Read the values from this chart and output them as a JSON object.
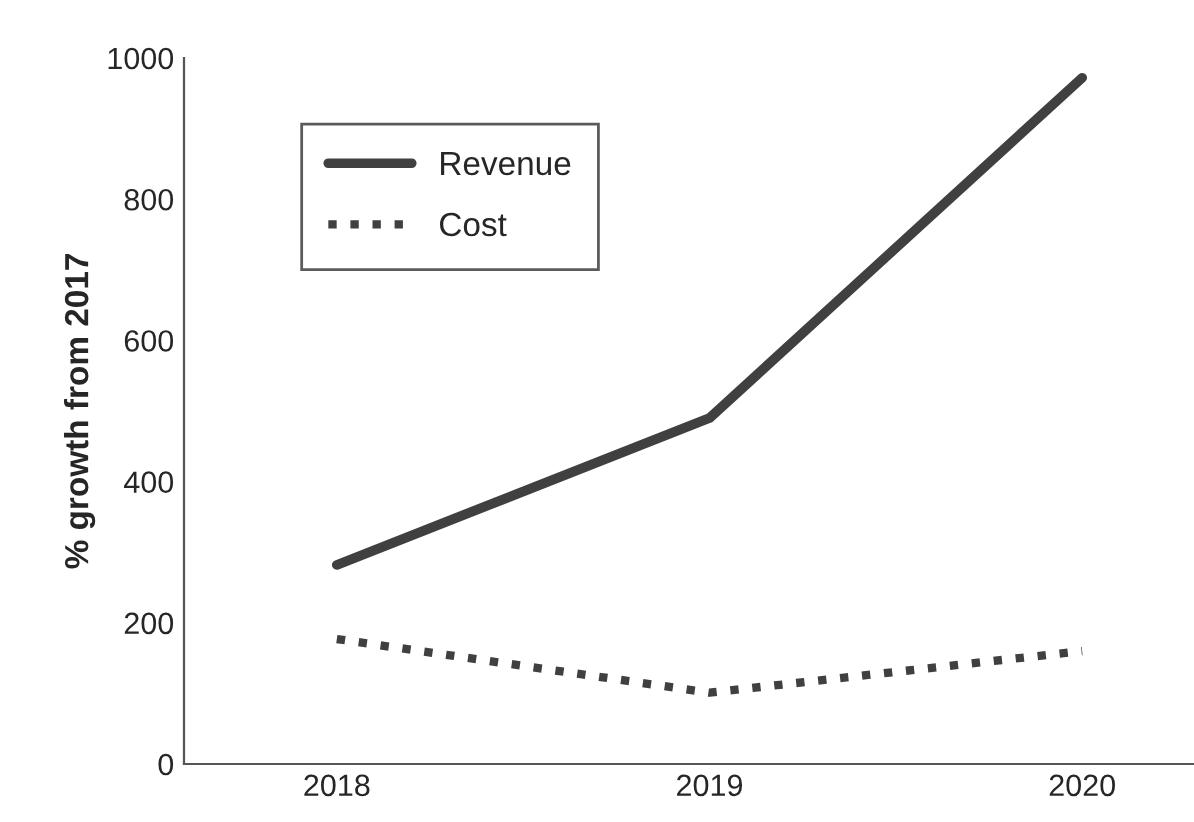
{
  "chart_data": {
    "type": "line",
    "ylabel": "% growth from 2017",
    "categories": [
      "2018",
      "2019",
      "2020"
    ],
    "series": [
      {
        "name": "Revenue",
        "color": "#404040",
        "line_style": "solid",
        "values": [
          282,
          490,
          972
        ]
      },
      {
        "name": "Cost",
        "color": "#404040",
        "line_style": "dotted",
        "values": [
          177,
          101,
          160
        ]
      }
    ],
    "ylim": [
      0,
      1000
    ],
    "yticks": [
      0,
      200,
      400,
      600,
      800,
      1000
    ],
    "grid": false,
    "legend": "top left",
    "marker": "none"
  }
}
